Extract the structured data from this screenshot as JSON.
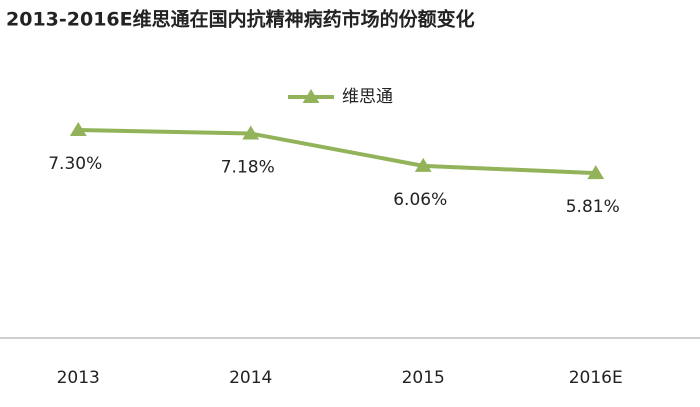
{
  "chart_data": {
    "type": "line",
    "title": "2013-2016E维思通在国内抗精神病药市场的份额变化",
    "categories": [
      "2013",
      "2014",
      "2015",
      "2016E"
    ],
    "series": [
      {
        "name": "维思通",
        "color": "#92b35a",
        "values": [
          7.3,
          7.18,
          6.06,
          5.81
        ],
        "value_labels": [
          "7.30%",
          "7.18%",
          "6.06%",
          "5.81%"
        ]
      }
    ],
    "ylim": [
      0,
      10
    ],
    "grid": false,
    "legend": "top"
  }
}
